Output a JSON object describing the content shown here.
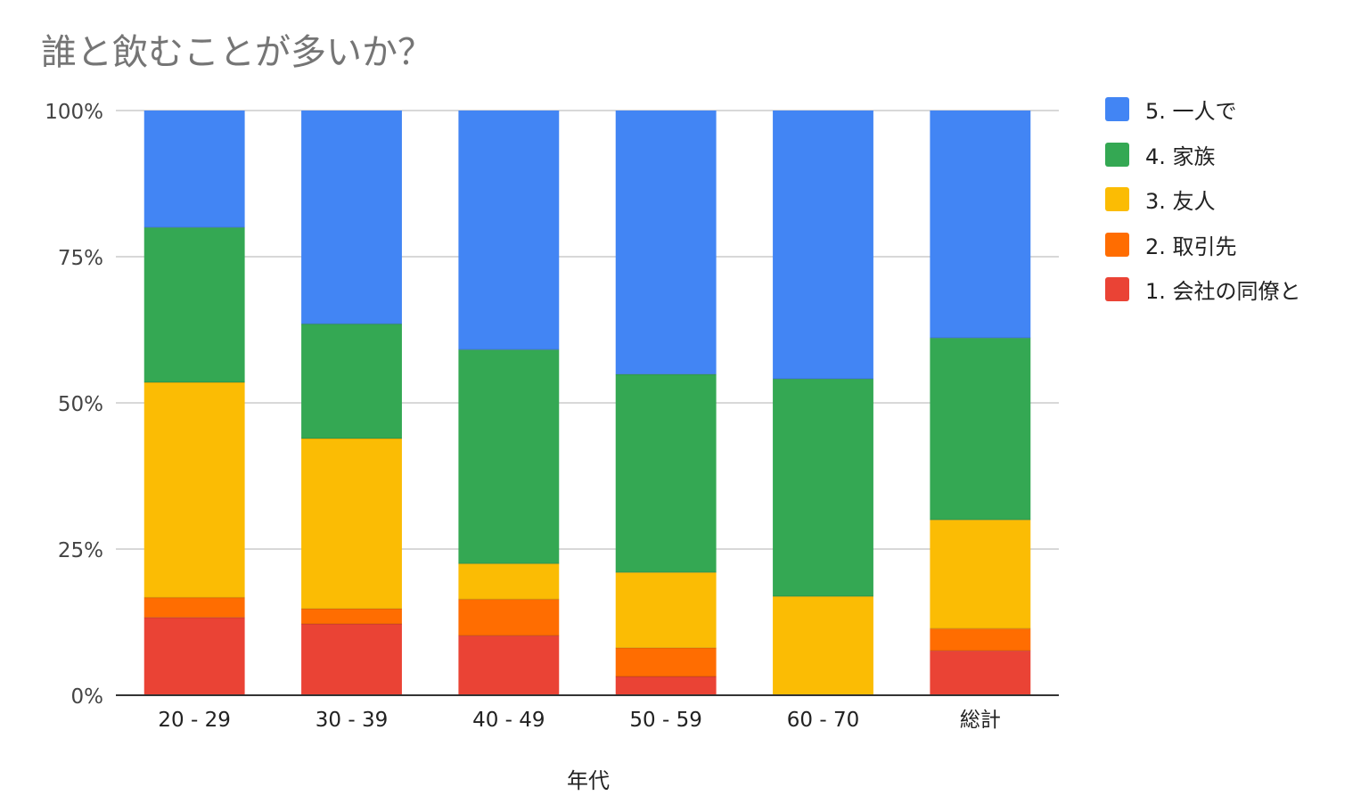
{
  "chart_data": {
    "type": "bar",
    "stacked": "percent",
    "title": "誰と飲むことが多いか？",
    "xlabel": "年代",
    "ylabel": "",
    "ylim": [
      0,
      100
    ],
    "yticks": [
      "0%",
      "25%",
      "50%",
      "75%",
      "100%"
    ],
    "grid": true,
    "legend_position": "right",
    "categories": [
      "20 - 29",
      "30 - 39",
      "40 - 49",
      "50 - 59",
      "60 - 70",
      "総計"
    ],
    "series": [
      {
        "name": "1.  会社の同僚と",
        "color": "#ea4335",
        "values": [
          13.3,
          12.2,
          10.2,
          3.2,
          0,
          7.6
        ]
      },
      {
        "name": "2.  取引先",
        "color": "#ff6d01",
        "values": [
          3.4,
          2.6,
          6.2,
          4.9,
          0,
          3.8
        ]
      },
      {
        "name": "3.  友人",
        "color": "#fbbc04",
        "values": [
          36.8,
          29.1,
          6.1,
          12.9,
          16.9,
          18.6
        ]
      },
      {
        "name": "4.  家族",
        "color": "#34a853",
        "values": [
          26.5,
          19.6,
          36.6,
          33.9,
          37.2,
          31.1
        ]
      },
      {
        "name": "5.  一人で",
        "color": "#4285f4",
        "values": [
          20.0,
          36.5,
          40.9,
          45.1,
          45.9,
          38.9
        ]
      }
    ]
  }
}
